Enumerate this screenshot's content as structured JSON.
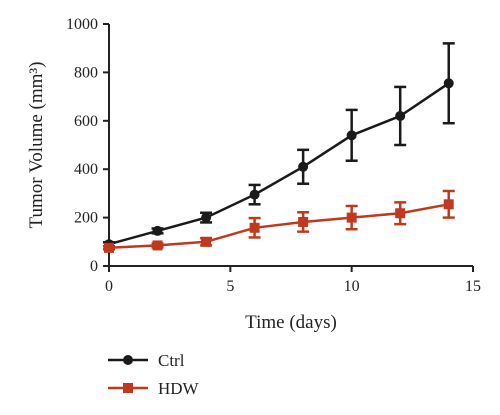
{
  "chart_data": {
    "type": "line",
    "xlabel": "Time (days)",
    "ylabel": "Tumor Volume (mm³)",
    "xlim": [
      0,
      15
    ],
    "ylim": [
      0,
      1000
    ],
    "xticks": [
      0,
      5,
      10,
      15
    ],
    "yticks": [
      0,
      200,
      400,
      600,
      800,
      1000
    ],
    "grid": false,
    "legend": "bottom-left",
    "series": [
      {
        "name": "Ctrl",
        "color": "#1a1a1a",
        "marker": "circle",
        "x": [
          0,
          2,
          4,
          6,
          8,
          10,
          12,
          14
        ],
        "y": [
          90,
          145,
          200,
          295,
          410,
          540,
          620,
          755
        ],
        "error": [
          8,
          10,
          20,
          40,
          70,
          105,
          120,
          165
        ]
      },
      {
        "name": "HDW",
        "color": "#c0391f",
        "marker": "square",
        "x": [
          0,
          2,
          4,
          6,
          8,
          10,
          12,
          14
        ],
        "y": [
          75,
          85,
          100,
          158,
          182,
          200,
          218,
          255
        ],
        "error": [
          6,
          8,
          15,
          40,
          40,
          48,
          45,
          55
        ]
      }
    ]
  }
}
